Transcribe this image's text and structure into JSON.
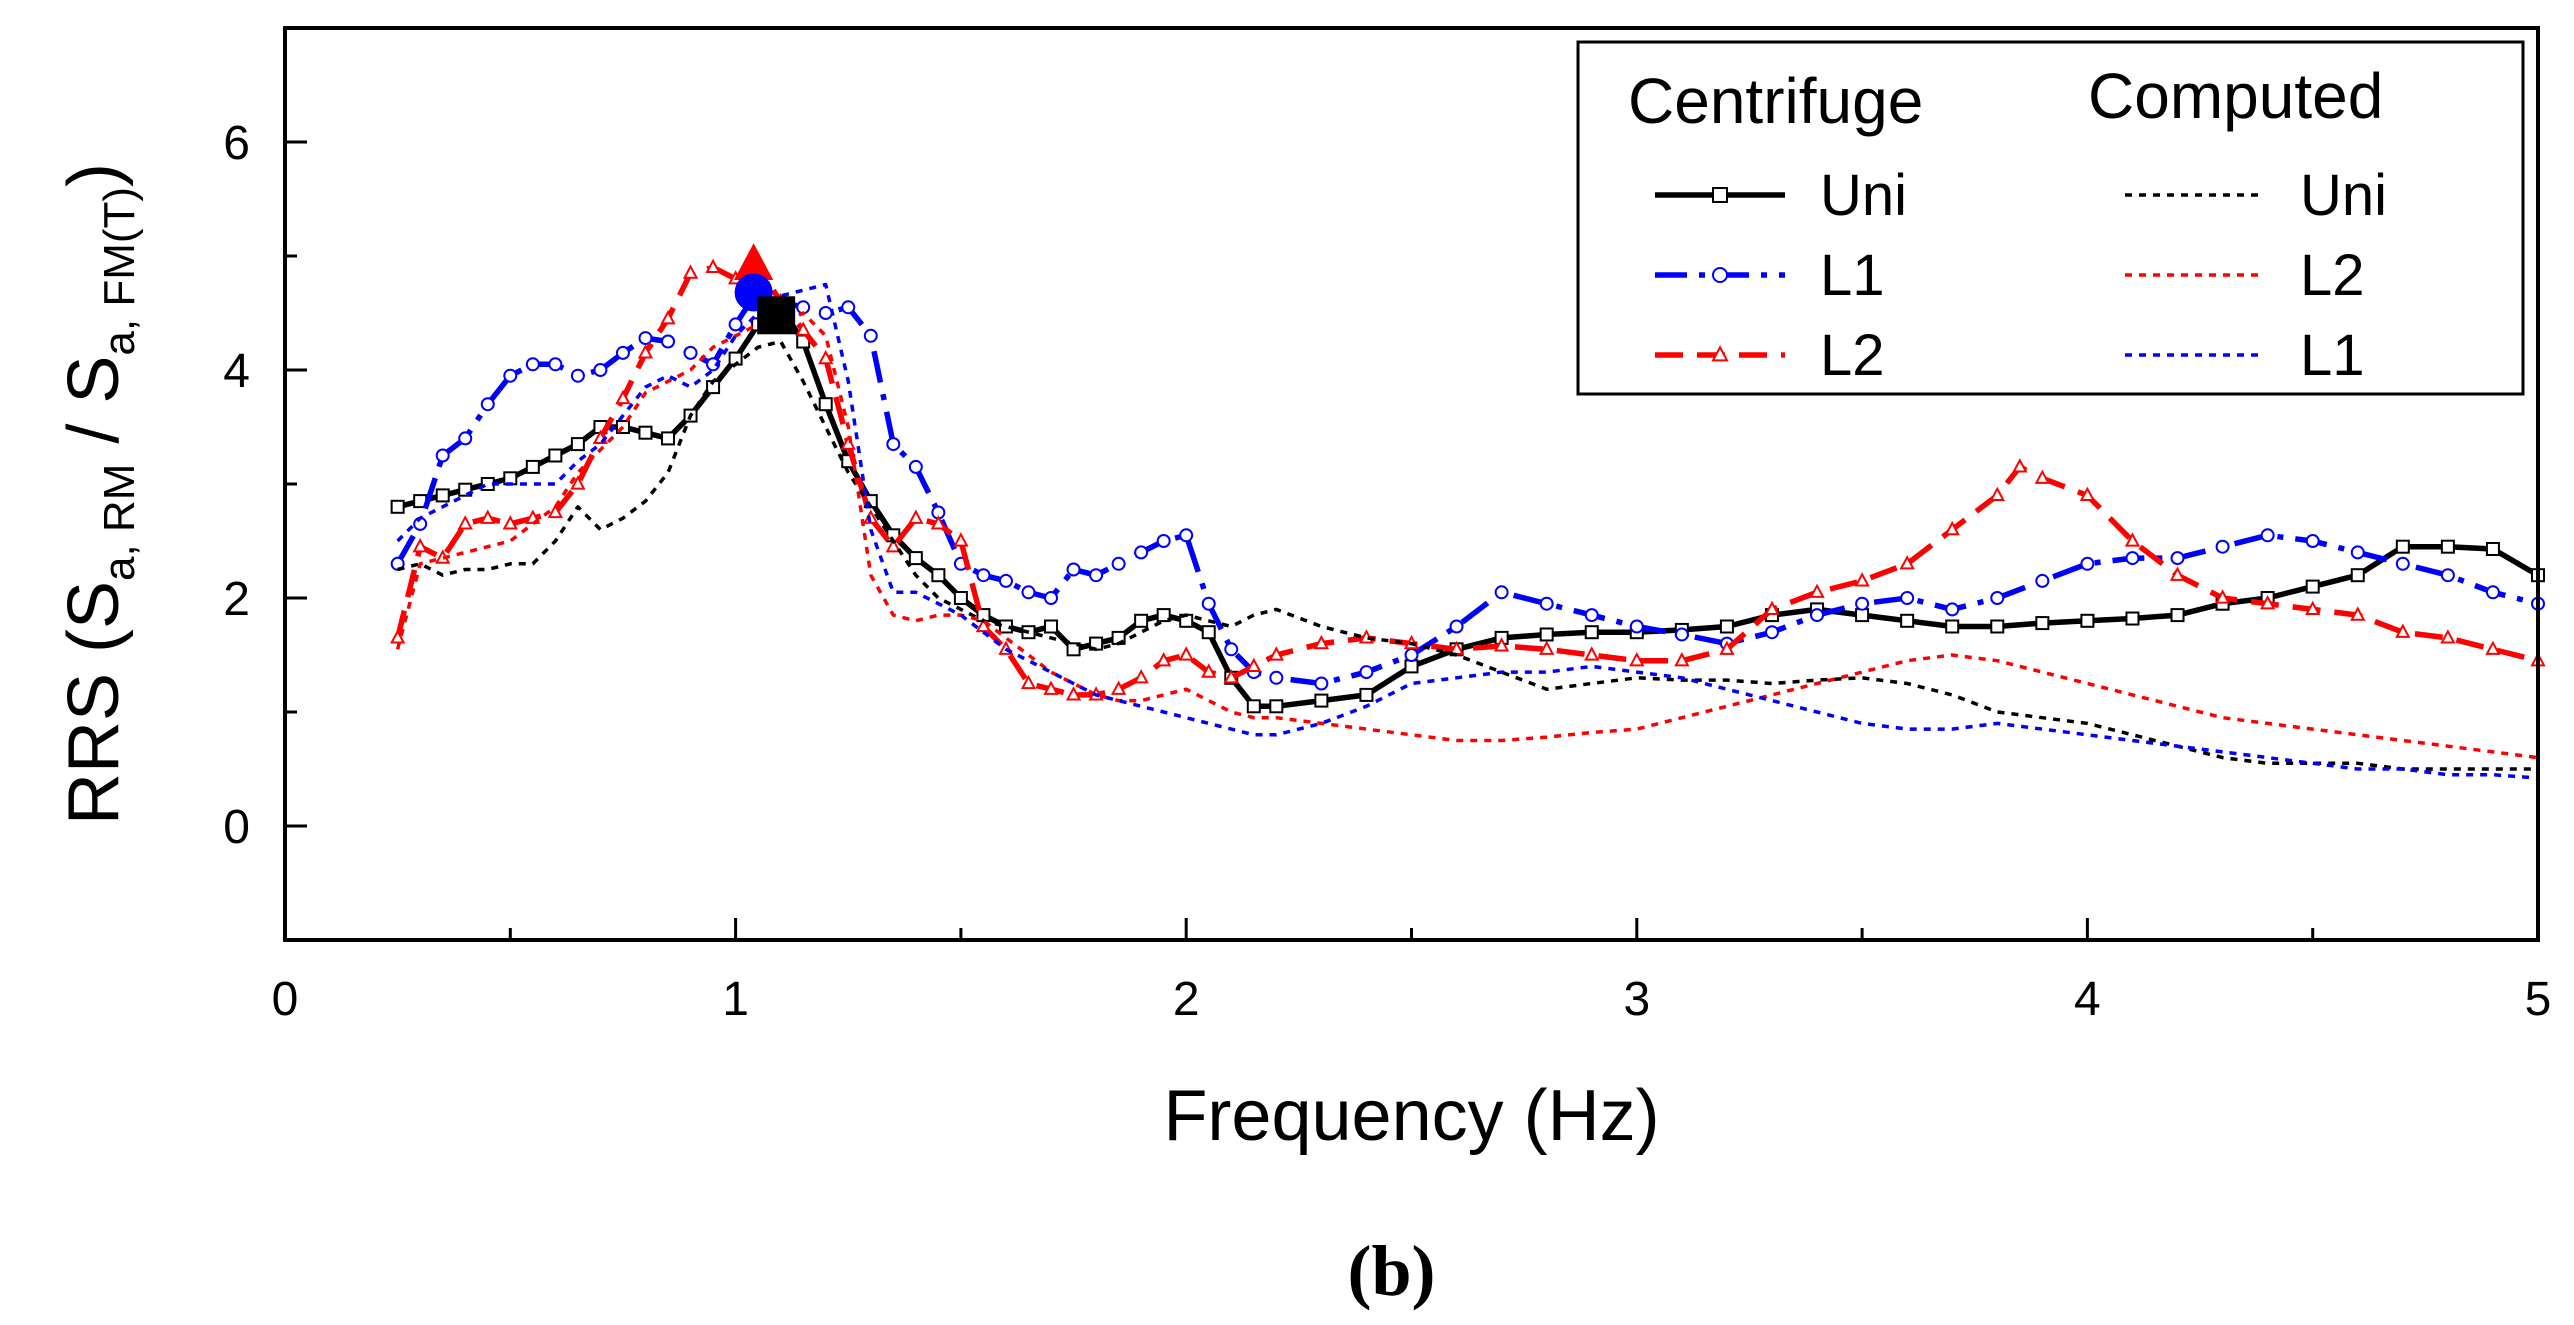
{
  "chart_data": {
    "type": "line",
    "title": "",
    "panel_label": "(b)",
    "xlabel": "Frequency (Hz)",
    "ylabel": "RRS (S",
    "ylabel_parts": {
      "main": "RRS (S",
      "sub1": "a, RM",
      "mid": " / S",
      "sub2": "a, FM(T)",
      "end": ")"
    },
    "xlim": [
      0,
      5
    ],
    "ylim": [
      -1,
      7
    ],
    "xticks": [
      "0",
      "1",
      "2",
      "3",
      "4",
      "5"
    ],
    "yticks": [
      "0",
      "2",
      "4",
      "6"
    ],
    "legend": {
      "position": "top-right",
      "centrifuge_header": "Centrifuge",
      "computed_header": "Computed"
    },
    "series": [
      {
        "name": "Uni",
        "group": "Centrifuge",
        "color": "#000000",
        "style": "solid",
        "marker": "square",
        "x": [
          0.25,
          0.3,
          0.35,
          0.4,
          0.45,
          0.5,
          0.55,
          0.6,
          0.65,
          0.7,
          0.75,
          0.8,
          0.85,
          0.9,
          0.95,
          1.0,
          1.05,
          1.1,
          1.15,
          1.2,
          1.25,
          1.3,
          1.35,
          1.4,
          1.45,
          1.5,
          1.55,
          1.6,
          1.65,
          1.7,
          1.75,
          1.8,
          1.85,
          1.9,
          1.95,
          2.0,
          2.05,
          2.1,
          2.15,
          2.2,
          2.3,
          2.4,
          2.5,
          2.6,
          2.7,
          2.8,
          2.9,
          3.0,
          3.1,
          3.2,
          3.3,
          3.4,
          3.5,
          3.6,
          3.7,
          3.8,
          3.9,
          4.0,
          4.1,
          4.2,
          4.3,
          4.4,
          4.5,
          4.6,
          4.7,
          4.8,
          4.9,
          5.0
        ],
        "y": [
          2.8,
          2.85,
          2.9,
          2.95,
          3.0,
          3.05,
          3.15,
          3.25,
          3.35,
          3.5,
          3.5,
          3.45,
          3.4,
          3.6,
          3.85,
          4.1,
          4.4,
          4.55,
          4.25,
          3.7,
          3.2,
          2.85,
          2.55,
          2.35,
          2.2,
          2.0,
          1.85,
          1.75,
          1.7,
          1.75,
          1.55,
          1.6,
          1.65,
          1.8,
          1.85,
          1.8,
          1.7,
          1.3,
          1.05,
          1.05,
          1.1,
          1.15,
          1.4,
          1.55,
          1.65,
          1.68,
          1.7,
          1.7,
          1.72,
          1.75,
          1.85,
          1.9,
          1.85,
          1.8,
          1.75,
          1.75,
          1.78,
          1.8,
          1.82,
          1.85,
          1.95,
          2.0,
          2.1,
          2.2,
          2.45,
          2.45,
          2.43,
          2.2
        ]
      },
      {
        "name": "L1",
        "group": "Centrifuge",
        "color": "#0000ff",
        "style": "dashdot",
        "marker": "circle",
        "x": [
          0.25,
          0.3,
          0.35,
          0.4,
          0.45,
          0.5,
          0.55,
          0.6,
          0.65,
          0.7,
          0.75,
          0.8,
          0.85,
          0.9,
          0.95,
          1.0,
          1.05,
          1.1,
          1.15,
          1.2,
          1.25,
          1.3,
          1.35,
          1.4,
          1.45,
          1.5,
          1.55,
          1.6,
          1.65,
          1.7,
          1.75,
          1.8,
          1.85,
          1.9,
          1.95,
          2.0,
          2.05,
          2.1,
          2.15,
          2.2,
          2.3,
          2.4,
          2.5,
          2.6,
          2.7,
          2.8,
          2.9,
          3.0,
          3.1,
          3.2,
          3.3,
          3.4,
          3.5,
          3.6,
          3.7,
          3.8,
          3.9,
          4.0,
          4.1,
          4.2,
          4.3,
          4.4,
          4.5,
          4.6,
          4.7,
          4.8,
          4.9,
          5.0
        ],
        "y": [
          2.3,
          2.65,
          3.25,
          3.4,
          3.7,
          3.95,
          4.05,
          4.05,
          3.95,
          4.0,
          4.15,
          4.28,
          4.25,
          4.15,
          4.05,
          4.4,
          4.7,
          4.6,
          4.55,
          4.5,
          4.55,
          4.3,
          3.35,
          3.15,
          2.75,
          2.3,
          2.2,
          2.15,
          2.05,
          2.0,
          2.25,
          2.2,
          2.3,
          2.4,
          2.5,
          2.55,
          1.95,
          1.55,
          1.35,
          1.3,
          1.25,
          1.35,
          1.5,
          1.75,
          2.05,
          1.95,
          1.85,
          1.75,
          1.68,
          1.6,
          1.7,
          1.85,
          1.95,
          2.0,
          1.9,
          2.0,
          2.15,
          2.3,
          2.35,
          2.35,
          2.45,
          2.55,
          2.5,
          2.4,
          2.3,
          2.2,
          2.05,
          1.95
        ]
      },
      {
        "name": "L2",
        "group": "Centrifuge",
        "color": "#ff0000",
        "style": "dashed",
        "marker": "triangle",
        "x": [
          0.25,
          0.3,
          0.35,
          0.4,
          0.45,
          0.5,
          0.55,
          0.6,
          0.65,
          0.7,
          0.75,
          0.8,
          0.85,
          0.9,
          0.95,
          1.0,
          1.05,
          1.1,
          1.15,
          1.2,
          1.25,
          1.3,
          1.35,
          1.4,
          1.45,
          1.5,
          1.55,
          1.6,
          1.65,
          1.7,
          1.75,
          1.8,
          1.85,
          1.9,
          1.95,
          2.0,
          2.05,
          2.1,
          2.15,
          2.2,
          2.3,
          2.4,
          2.5,
          2.6,
          2.7,
          2.8,
          2.9,
          3.0,
          3.1,
          3.2,
          3.3,
          3.4,
          3.5,
          3.6,
          3.7,
          3.8,
          3.85,
          3.9,
          4.0,
          4.1,
          4.2,
          4.3,
          4.4,
          4.5,
          4.6,
          4.7,
          4.8,
          4.9,
          5.0
        ],
        "y": [
          1.65,
          2.45,
          2.35,
          2.65,
          2.7,
          2.65,
          2.7,
          2.75,
          3.0,
          3.4,
          3.75,
          4.15,
          4.45,
          4.85,
          4.9,
          4.8,
          4.9,
          4.6,
          4.35,
          4.1,
          3.35,
          2.7,
          2.45,
          2.7,
          2.65,
          2.5,
          1.75,
          1.55,
          1.25,
          1.2,
          1.15,
          1.15,
          1.2,
          1.3,
          1.45,
          1.5,
          1.35,
          1.3,
          1.4,
          1.5,
          1.6,
          1.65,
          1.6,
          1.55,
          1.58,
          1.55,
          1.5,
          1.45,
          1.45,
          1.55,
          1.9,
          2.05,
          2.15,
          2.3,
          2.6,
          2.9,
          3.15,
          3.05,
          2.9,
          2.5,
          2.2,
          2.0,
          1.95,
          1.9,
          1.85,
          1.7,
          1.65,
          1.55,
          1.45
        ]
      },
      {
        "name": "Uni",
        "group": "Computed",
        "color": "#000000",
        "style": "dotted",
        "x": [
          0.25,
          0.3,
          0.35,
          0.4,
          0.45,
          0.5,
          0.55,
          0.6,
          0.65,
          0.7,
          0.75,
          0.8,
          0.85,
          0.9,
          0.95,
          1.0,
          1.05,
          1.1,
          1.15,
          1.2,
          1.25,
          1.3,
          1.35,
          1.4,
          1.45,
          1.5,
          1.55,
          1.6,
          1.65,
          1.7,
          1.75,
          1.8,
          1.85,
          1.9,
          1.95,
          2.0,
          2.05,
          2.1,
          2.15,
          2.2,
          2.3,
          2.4,
          2.5,
          2.6,
          2.7,
          2.8,
          2.9,
          3.0,
          3.1,
          3.2,
          3.3,
          3.4,
          3.5,
          3.6,
          3.7,
          3.8,
          3.9,
          4.0,
          4.1,
          4.2,
          4.3,
          4.4,
          4.5,
          4.6,
          4.7,
          4.8,
          4.9,
          5.0
        ],
        "y": [
          2.25,
          2.3,
          2.2,
          2.25,
          2.25,
          2.3,
          2.3,
          2.5,
          2.8,
          2.6,
          2.7,
          2.85,
          3.1,
          3.6,
          3.9,
          4.05,
          4.2,
          4.25,
          3.9,
          3.5,
          3.1,
          2.8,
          2.5,
          2.2,
          2.0,
          1.9,
          1.8,
          1.75,
          1.7,
          1.65,
          1.6,
          1.55,
          1.6,
          1.7,
          1.8,
          1.85,
          1.8,
          1.75,
          1.85,
          1.9,
          1.75,
          1.65,
          1.6,
          1.5,
          1.35,
          1.2,
          1.25,
          1.3,
          1.28,
          1.28,
          1.25,
          1.28,
          1.3,
          1.25,
          1.15,
          1.0,
          0.95,
          0.9,
          0.8,
          0.7,
          0.6,
          0.55,
          0.55,
          0.55,
          0.5,
          0.5,
          0.5,
          0.5
        ]
      },
      {
        "name": "L2",
        "group": "Computed",
        "color": "#ff0000",
        "style": "dotted",
        "x": [
          0.25,
          0.3,
          0.35,
          0.4,
          0.45,
          0.5,
          0.55,
          0.6,
          0.65,
          0.7,
          0.75,
          0.8,
          0.85,
          0.9,
          0.95,
          1.0,
          1.05,
          1.1,
          1.15,
          1.2,
          1.25,
          1.3,
          1.35,
          1.4,
          1.45,
          1.5,
          1.55,
          1.6,
          1.65,
          1.7,
          1.75,
          1.8,
          1.85,
          1.9,
          1.95,
          2.0,
          2.05,
          2.1,
          2.15,
          2.2,
          2.3,
          2.4,
          2.5,
          2.6,
          2.7,
          2.8,
          2.9,
          3.0,
          3.1,
          3.2,
          3.3,
          3.4,
          3.5,
          3.6,
          3.7,
          3.8,
          3.9,
          4.0,
          4.1,
          4.2,
          4.3,
          4.4,
          4.5,
          4.6,
          4.7,
          4.8,
          4.9,
          5.0
        ],
        "y": [
          1.55,
          2.3,
          2.35,
          2.4,
          2.45,
          2.5,
          2.65,
          2.8,
          3.1,
          3.3,
          3.5,
          3.8,
          3.9,
          4.0,
          4.2,
          4.3,
          4.4,
          4.4,
          4.5,
          4.3,
          3.5,
          2.2,
          1.85,
          1.8,
          1.85,
          1.85,
          1.8,
          1.65,
          1.5,
          1.35,
          1.25,
          1.15,
          1.1,
          1.1,
          1.15,
          1.2,
          1.1,
          1.0,
          0.95,
          0.95,
          0.9,
          0.85,
          0.8,
          0.75,
          0.75,
          0.78,
          0.82,
          0.85,
          0.95,
          1.05,
          1.15,
          1.25,
          1.35,
          1.45,
          1.5,
          1.45,
          1.35,
          1.25,
          1.15,
          1.05,
          0.95,
          0.9,
          0.85,
          0.8,
          0.75,
          0.7,
          0.65,
          0.6
        ]
      },
      {
        "name": "L1",
        "group": "Computed",
        "color": "#0000ff",
        "style": "dotted",
        "x": [
          0.25,
          0.3,
          0.35,
          0.4,
          0.45,
          0.5,
          0.55,
          0.6,
          0.65,
          0.7,
          0.75,
          0.8,
          0.85,
          0.9,
          0.95,
          1.0,
          1.05,
          1.1,
          1.15,
          1.2,
          1.25,
          1.3,
          1.35,
          1.4,
          1.45,
          1.5,
          1.55,
          1.6,
          1.65,
          1.7,
          1.75,
          1.8,
          1.85,
          1.9,
          1.95,
          2.0,
          2.05,
          2.1,
          2.15,
          2.2,
          2.3,
          2.4,
          2.5,
          2.6,
          2.7,
          2.8,
          2.9,
          3.0,
          3.1,
          3.2,
          3.3,
          3.4,
          3.5,
          3.6,
          3.7,
          3.8,
          3.9,
          4.0,
          4.1,
          4.2,
          4.3,
          4.4,
          4.5,
          4.6,
          4.7,
          4.8,
          4.9,
          5.0
        ],
        "y": [
          2.5,
          2.7,
          2.8,
          2.9,
          3.0,
          3.0,
          3.0,
          3.0,
          3.2,
          3.35,
          3.6,
          3.85,
          3.95,
          3.85,
          4.0,
          4.3,
          4.5,
          4.65,
          4.7,
          4.75,
          3.9,
          2.6,
          2.05,
          2.05,
          1.95,
          1.85,
          1.7,
          1.55,
          1.45,
          1.35,
          1.25,
          1.15,
          1.1,
          1.05,
          1.0,
          0.95,
          0.9,
          0.85,
          0.8,
          0.8,
          0.9,
          1.05,
          1.25,
          1.3,
          1.35,
          1.35,
          1.4,
          1.35,
          1.3,
          1.2,
          1.1,
          1.0,
          0.9,
          0.85,
          0.85,
          0.9,
          0.85,
          0.8,
          0.75,
          0.7,
          0.65,
          0.6,
          0.55,
          0.5,
          0.5,
          0.45,
          0.45,
          0.42
        ]
      }
    ],
    "peak_markers": [
      {
        "name": "L2 peak",
        "x": 1.04,
        "y": 4.92,
        "color": "#ff0000",
        "shape": "triangle"
      },
      {
        "name": "L1 peak",
        "x": 1.04,
        "y": 4.68,
        "color": "#0000ff",
        "shape": "circle"
      },
      {
        "name": "Uni peak",
        "x": 1.09,
        "y": 4.48,
        "color": "#000000",
        "shape": "square"
      }
    ]
  }
}
